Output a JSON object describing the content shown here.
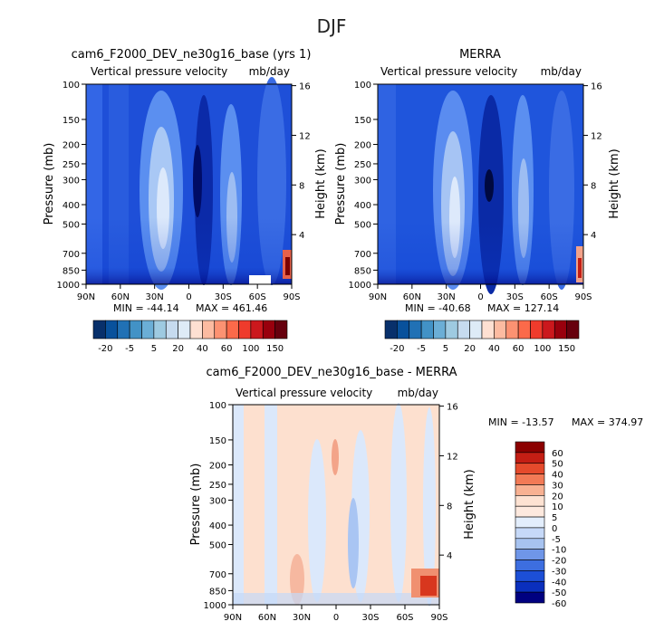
{
  "page_title": "DJF",
  "colors": {
    "div11": [
      "#08306b",
      "#08519c",
      "#2171b5",
      "#4292c6",
      "#6baed6",
      "#9ecae1",
      "#c6dbef",
      "#deebf7",
      "#fee0d2",
      "#fcbba1",
      "#fc9272",
      "#fb6a4a",
      "#ef3b2c",
      "#cb181d",
      "#99000d",
      "#67000d"
    ],
    "blues6": [
      "#000080",
      "#0a2fbd",
      "#1c4fd6",
      "#3d6ee0",
      "#6f96e8",
      "#a7c3f0"
    ],
    "reds6": [
      "#fde2d2",
      "#f8b192",
      "#f27a56",
      "#e54a2c",
      "#c41e14",
      "#8b0000"
    ]
  },
  "chart_data": [
    {
      "id": "model",
      "type": "heatmap",
      "title": "cam6_F2000_DEV_ne30g16_base (yrs 1)",
      "subtitle_left": "Vertical pressure velocity",
      "subtitle_right": "mb/day",
      "xlabel": "",
      "ylabel": "Pressure (mb)",
      "y2label": "Height (km)",
      "xticks": [
        "90N",
        "60N",
        "30N",
        "0",
        "30S",
        "60S",
        "90S"
      ],
      "yticks": [
        "100",
        "150",
        "200",
        "250",
        "300",
        "400",
        "500",
        "700",
        "850",
        "1000"
      ],
      "y2ticks": [
        "16",
        "12",
        "8",
        "4"
      ],
      "xlim": [
        90,
        -90
      ],
      "ylim": [
        1000,
        100
      ],
      "min_text": "MIN = -44.14",
      "max_text": "MAX = 461.46",
      "colorbar_levels": [
        "-20",
        "-5",
        "5",
        "20",
        "40",
        "60",
        "100",
        "150"
      ]
    },
    {
      "id": "obs",
      "type": "heatmap",
      "title": "MERRA",
      "subtitle_left": "Vertical pressure velocity",
      "subtitle_right": "mb/day",
      "xlabel": "",
      "ylabel": "Pressure (mb)",
      "y2label": "Height (km)",
      "xticks": [
        "90N",
        "60N",
        "30N",
        "0",
        "30S",
        "60S",
        "90S"
      ],
      "yticks": [
        "100",
        "150",
        "200",
        "250",
        "300",
        "400",
        "500",
        "700",
        "850",
        "1000"
      ],
      "y2ticks": [
        "16",
        "12",
        "8",
        "4"
      ],
      "xlim": [
        90,
        -90
      ],
      "ylim": [
        1000,
        100
      ],
      "min_text": "MIN = -40.68",
      "max_text": "MAX = 127.14",
      "colorbar_levels": [
        "-20",
        "-5",
        "5",
        "20",
        "40",
        "60",
        "100",
        "150"
      ]
    },
    {
      "id": "diff",
      "type": "heatmap",
      "title": "cam6_F2000_DEV_ne30g16_base - MERRA",
      "subtitle_left": "Vertical pressure velocity",
      "subtitle_right": "mb/day",
      "xlabel": "",
      "ylabel": "Pressure (mb)",
      "y2label": "Height (km)",
      "xticks": [
        "90N",
        "60N",
        "30N",
        "0",
        "30S",
        "60S",
        "90S"
      ],
      "yticks": [
        "100",
        "150",
        "200",
        "250",
        "300",
        "400",
        "500",
        "700",
        "850",
        "1000"
      ],
      "y2ticks": [
        "16",
        "12",
        "8",
        "4"
      ],
      "xlim": [
        90,
        -90
      ],
      "ylim": [
        1000,
        100
      ],
      "min_text": "MIN = -13.57",
      "max_text": "MAX = 374.97",
      "colorbar_levels": [
        "60",
        "50",
        "40",
        "30",
        "20",
        "10",
        "5",
        "0",
        "-5",
        "-10",
        "-20",
        "-30",
        "-40",
        "-50",
        "-60"
      ]
    }
  ]
}
